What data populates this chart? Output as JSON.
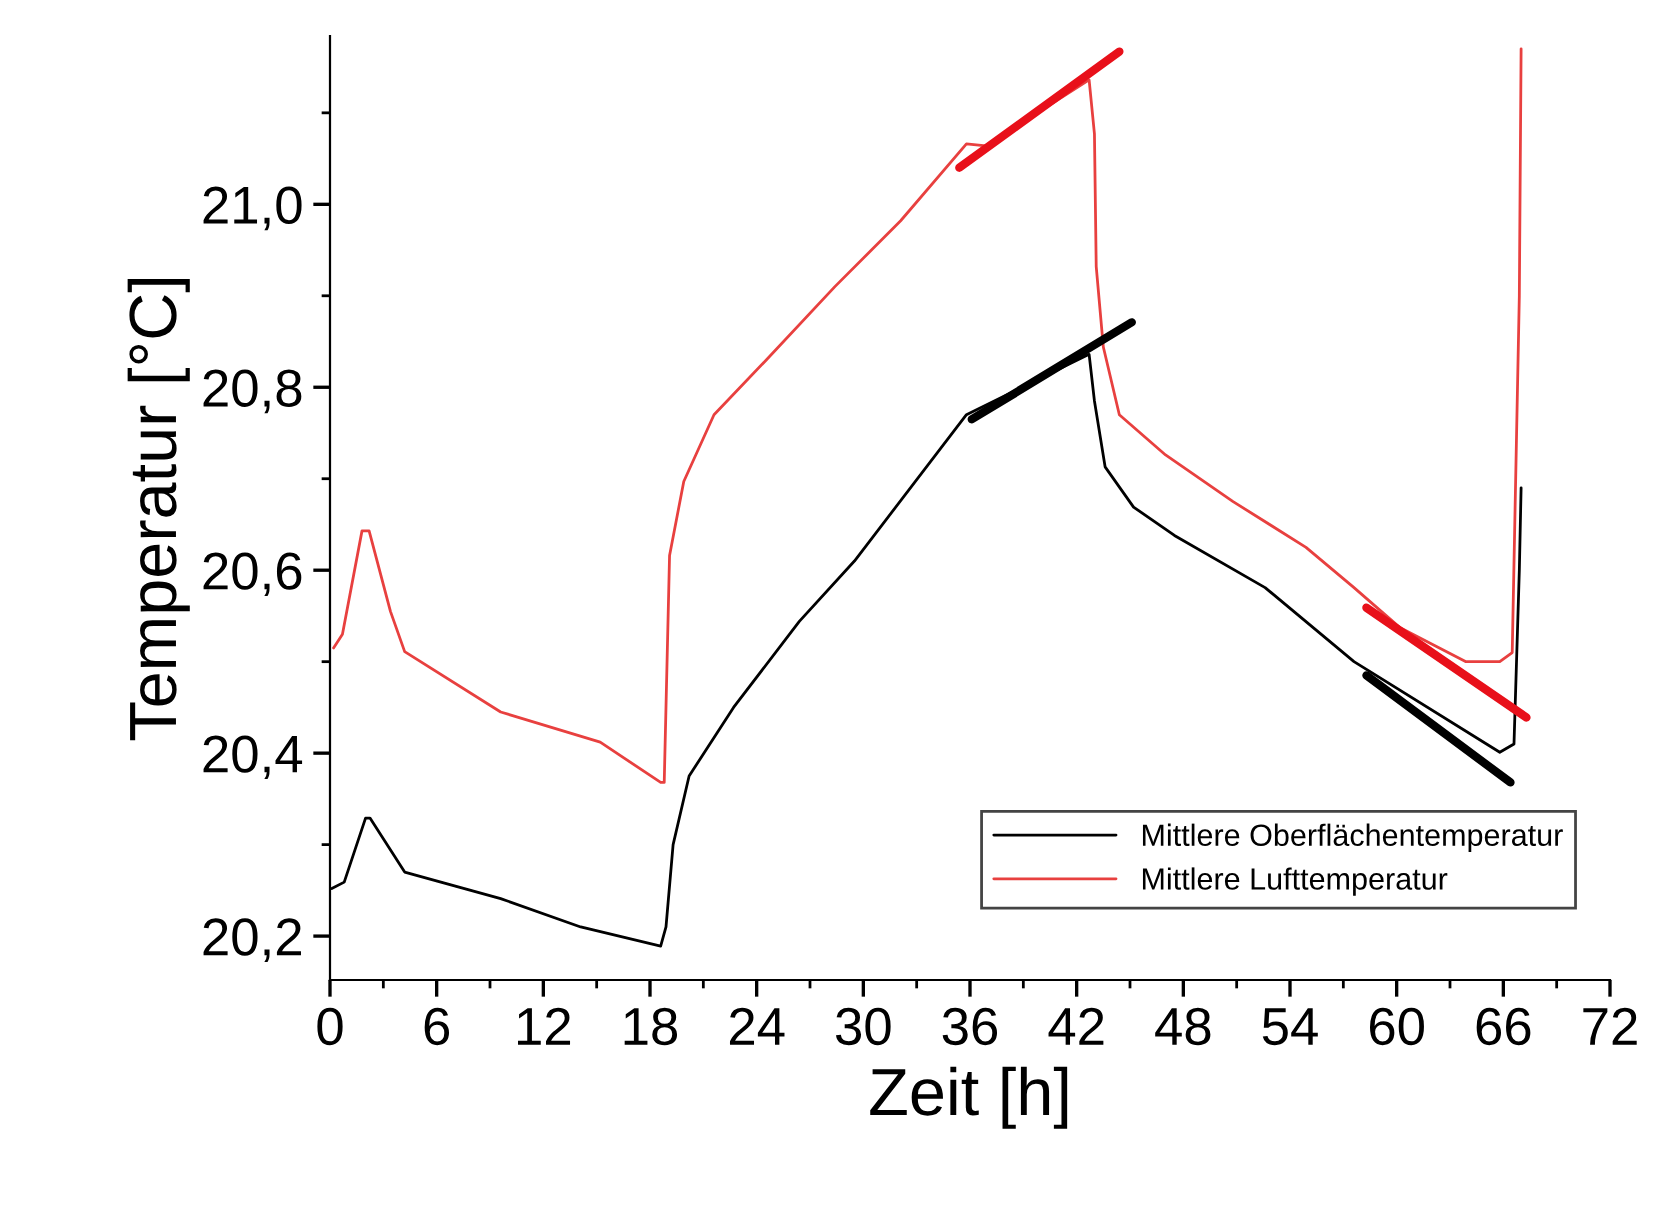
{
  "chart_data": {
    "type": "line",
    "xlabel": "Zeit [h]",
    "ylabel": "Temperatur [°C]",
    "xlim": [
      0,
      72
    ],
    "xticks": [
      0,
      6,
      12,
      18,
      24,
      30,
      36,
      42,
      48,
      54,
      60,
      66,
      72
    ],
    "ylim": [
      20.152,
      21.184
    ],
    "yticks": [
      {
        "value": 20.2,
        "label": "20,2"
      },
      {
        "value": 20.4,
        "label": "20,4"
      },
      {
        "value": 20.6,
        "label": "20,6"
      },
      {
        "value": 20.8,
        "label": "20,8"
      },
      {
        "value": 21.0,
        "label": "21,0"
      }
    ],
    "grid": false,
    "legend": "bottom right",
    "line_style": "solid",
    "marker": "none",
    "series": [
      {
        "name": "Mittlere Oberflächentemperatur",
        "color": "#000000",
        "x": [
          0.1,
          0.8,
          2.0,
          2.25,
          4.2,
          9.6,
          14.1,
          18.6,
          18.9,
          19.3,
          20.2,
          22.7,
          26.4,
          29.5,
          35.8,
          42.7,
          43.0,
          43.6,
          45.2,
          47.5,
          52.6,
          57.6,
          65.8,
          66.6,
          66.9,
          67.0
        ],
        "values": [
          20.252,
          20.259,
          20.329,
          20.329,
          20.27,
          20.241,
          20.21,
          20.189,
          20.21,
          20.3,
          20.375,
          20.45,
          20.544,
          20.61,
          20.77,
          20.836,
          20.785,
          20.713,
          20.669,
          20.638,
          20.581,
          20.5,
          20.401,
          20.41,
          20.6,
          20.69
        ]
      },
      {
        "name": "Mittlere Lufttemperatur",
        "color": "#e8403f",
        "x": [
          0.2,
          0.7,
          1.8,
          2.2,
          3.4,
          4.2,
          9.6,
          15.2,
          18.6,
          18.8,
          19.1,
          19.9,
          21.6,
          24.5,
          28.4,
          32.1,
          35.8,
          36.9,
          42.7,
          43.0,
          43.1,
          43.5,
          44.4,
          47.0,
          50.8,
          54.9,
          57.6,
          60.2,
          63.9,
          65.8,
          66.5,
          66.9,
          67.0
        ],
        "values": [
          20.515,
          20.53,
          20.643,
          20.643,
          20.555,
          20.511,
          20.445,
          20.412,
          20.368,
          20.368,
          20.616,
          20.697,
          20.77,
          20.829,
          20.91,
          20.982,
          21.066,
          21.064,
          21.136,
          21.077,
          20.932,
          20.844,
          20.77,
          20.726,
          20.675,
          20.625,
          20.581,
          20.537,
          20.5,
          20.5,
          20.51,
          20.9,
          21.17
        ]
      },
      {
        "color": "#e8101a",
        "x": [
          35.4,
          44.4
        ],
        "values": [
          21.04,
          21.167
        ]
      },
      {
        "color": "#000000",
        "x": [
          36.1,
          45.1
        ],
        "values": [
          20.765,
          20.871
        ]
      },
      {
        "color": "#e8101a",
        "x": [
          58.3,
          67.3
        ],
        "values": [
          20.559,
          20.439
        ]
      },
      {
        "color": "#000000",
        "x": [
          58.3,
          66.4
        ],
        "values": [
          20.485,
          20.368
        ]
      }
    ]
  }
}
